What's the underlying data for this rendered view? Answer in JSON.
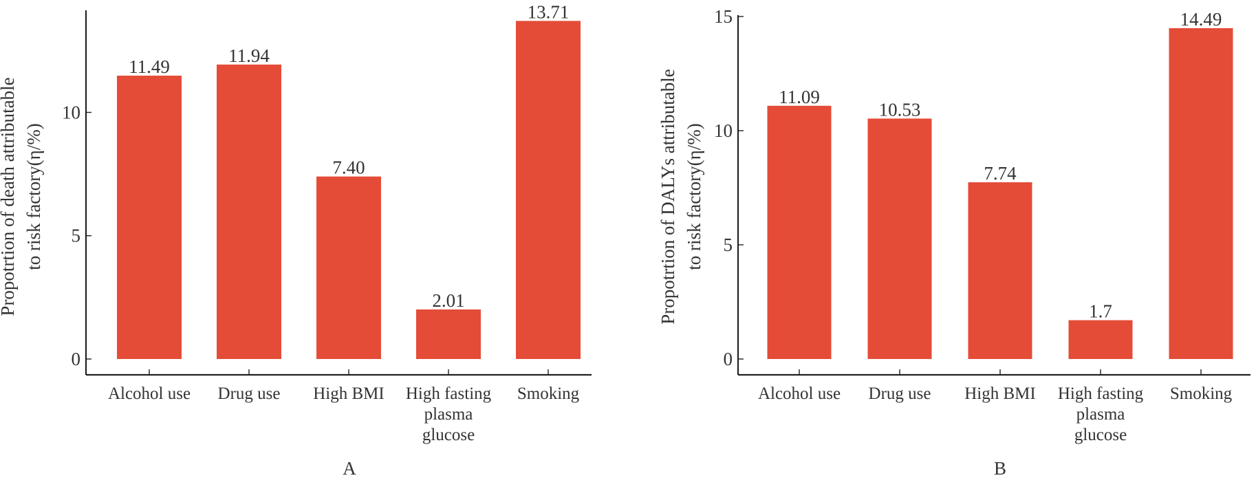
{
  "colors": {
    "bar": "#E44C37",
    "axis": "#222222",
    "text": "#333333"
  },
  "chart_data": [
    {
      "type": "bar",
      "panel_label": "A",
      "categories": [
        "Alcohol use",
        "Drug use",
        "High BMI",
        "High fasting plasma glucose",
        "Smoking"
      ],
      "category_lines": [
        [
          "Alcohol use"
        ],
        [
          "Drug use"
        ],
        [
          "High BMI"
        ],
        [
          "High fasting",
          "plasma",
          "glucose"
        ],
        [
          "Smoking"
        ]
      ],
      "values": [
        11.49,
        11.94,
        7.4,
        2.01,
        13.71
      ],
      "value_labels": [
        "11.49",
        "11.94",
        "7.40",
        "2.01",
        "13.71"
      ],
      "ylabel_lines": [
        "Propotrtion of death attributable",
        "to risk factory(η/%)"
      ],
      "xlabel": "",
      "ylim": [
        0,
        14
      ],
      "yticks": [
        0,
        5,
        10
      ],
      "ytick_labels": [
        "0",
        "5",
        "10"
      ],
      "grid": false,
      "legend": "none"
    },
    {
      "type": "bar",
      "panel_label": "B",
      "categories": [
        "Alcohol use",
        "Drug use",
        "High BMI",
        "High fasting plasma glucose",
        "Smoking"
      ],
      "category_lines": [
        [
          "Alcohol use"
        ],
        [
          "Drug use"
        ],
        [
          "High BMI"
        ],
        [
          "High fasting",
          "plasma",
          "glucose"
        ],
        [
          "Smoking"
        ]
      ],
      "values": [
        11.09,
        10.53,
        7.74,
        1.7,
        14.49
      ],
      "value_labels": [
        "11.09",
        "10.53",
        "7.74",
        "1.7",
        "14.49"
      ],
      "ylabel_lines": [
        "Propotrtion of DALYs attributable",
        "to risk factory(η/%)"
      ],
      "xlabel": "",
      "ylim": [
        0,
        15
      ],
      "yticks": [
        0,
        5,
        10,
        15
      ],
      "ytick_labels": [
        "0",
        "5",
        "10",
        "15"
      ],
      "grid": false,
      "legend": "none"
    }
  ]
}
